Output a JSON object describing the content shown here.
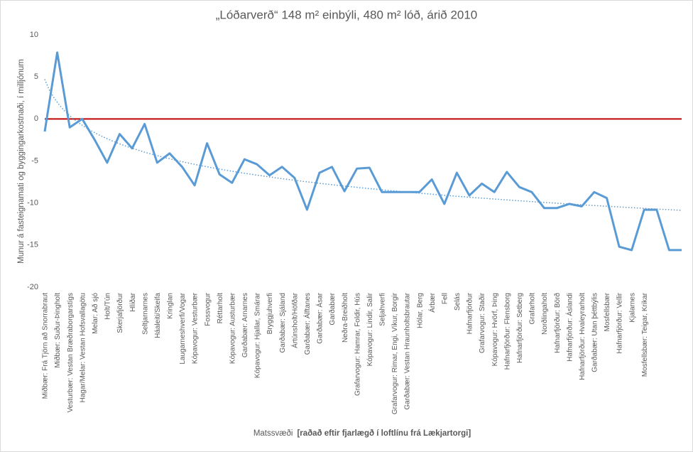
{
  "chart_data": {
    "type": "line",
    "title": "„Lóðarverð“ 148 m² einbýli, 480 m² lóð, árið 2010",
    "ylabel": "Munur á fasteignamati og byggingarkostnaði, í milljónum",
    "xlabel": "Matssvæði",
    "xlabel_detail": "[raðað eftir fjarlægð í loftlínu frá Lækjartorgi]",
    "categories": [
      "Miðbær: Frá Tjörn að Snorrabraut",
      "Miðbær: Suður-Þingholt",
      "Vesturbær: Vestan Bræðraborgarstígs",
      "Hagar/Melar: Vestan Hofsvallagötu",
      "Melar: Að sjó",
      "Holt/Tún",
      "Skerjafjörður",
      "Hlíðar",
      "Seltjarnarnes",
      "Háaleiti/Skeifa",
      "Kringlan",
      "Laugarneshverfi/Vogar",
      "Kópavogur: Vesturbær",
      "Fossvogur",
      "Réttarholt",
      "Kópavogur: Austurbær",
      "Garðabær: Arnarnes",
      "Kópavogur: Hjallar, Smárar",
      "Bryggjuhverfi",
      "Garðabær: Sjáland",
      "Ártúnsholt/Höfðar",
      "Garðabær: Álftanes",
      "Garðabær: Ásar",
      "Garðabær",
      "Neðra-Breiðholt",
      "Grafarvogur: Hamrar, Foldir, Hús",
      "Kópavogur: Lindir, Salir",
      "Seljahverfi",
      "Grafarvogur: Rimar, Engi, Víkur, Borgir",
      "Garðabær: Vestan Hraunholtsbrautar",
      "Hólar, Berg",
      "Árbær",
      "Fell",
      "Selás",
      "Hafnarfjörður",
      "Grafarvogur: Staðir",
      "Kópavogur: Hvörf, Þing",
      "Hafnarfjörður: Flensborg",
      "Hafnarfjörður: Setberg",
      "Grafarholt",
      "Norðlingaholt",
      "Hafnarfjörður: Börð",
      "Hafnarfjörður: Áslandi",
      "Hafnarfjörður: Hvaleyrarholt",
      "Garðabær: Utan þéttbýlis",
      "Mosfellsbær",
      "Hafnarfjörður: Vellir",
      "Kjalarnes",
      "Mosfellsbær: Teigar, Krikar",
      null,
      null,
      null
    ],
    "values": [
      -1.5,
      7.9,
      -1.0,
      0.0,
      -2.5,
      -5.2,
      -1.8,
      -3.5,
      -0.6,
      -5.2,
      -4.1,
      -5.7,
      -7.9,
      -2.9,
      -6.6,
      -7.6,
      -4.8,
      -5.4,
      -6.7,
      -5.7,
      -7.0,
      -10.8,
      -6.4,
      -5.7,
      -8.6,
      -5.9,
      -5.8,
      -8.7,
      -8.7,
      -8.7,
      -8.7,
      -7.2,
      -10.1,
      -6.4,
      -9.1,
      -7.7,
      -8.7,
      -6.3,
      -8.1,
      -8.7,
      -10.6,
      -10.6,
      -10.1,
      -10.4,
      -8.7,
      -9.4,
      -15.2,
      -15.6,
      -10.8,
      -10.8,
      -15.6,
      -15.6
    ],
    "color": "#5b9bd5",
    "trendline": "logarithmic",
    "reference_line": {
      "value": 0,
      "color": "#c00000"
    },
    "ylim": [
      -20,
      10
    ],
    "yticks": [
      -20,
      -15,
      -10,
      -5,
      0,
      5,
      10
    ]
  }
}
